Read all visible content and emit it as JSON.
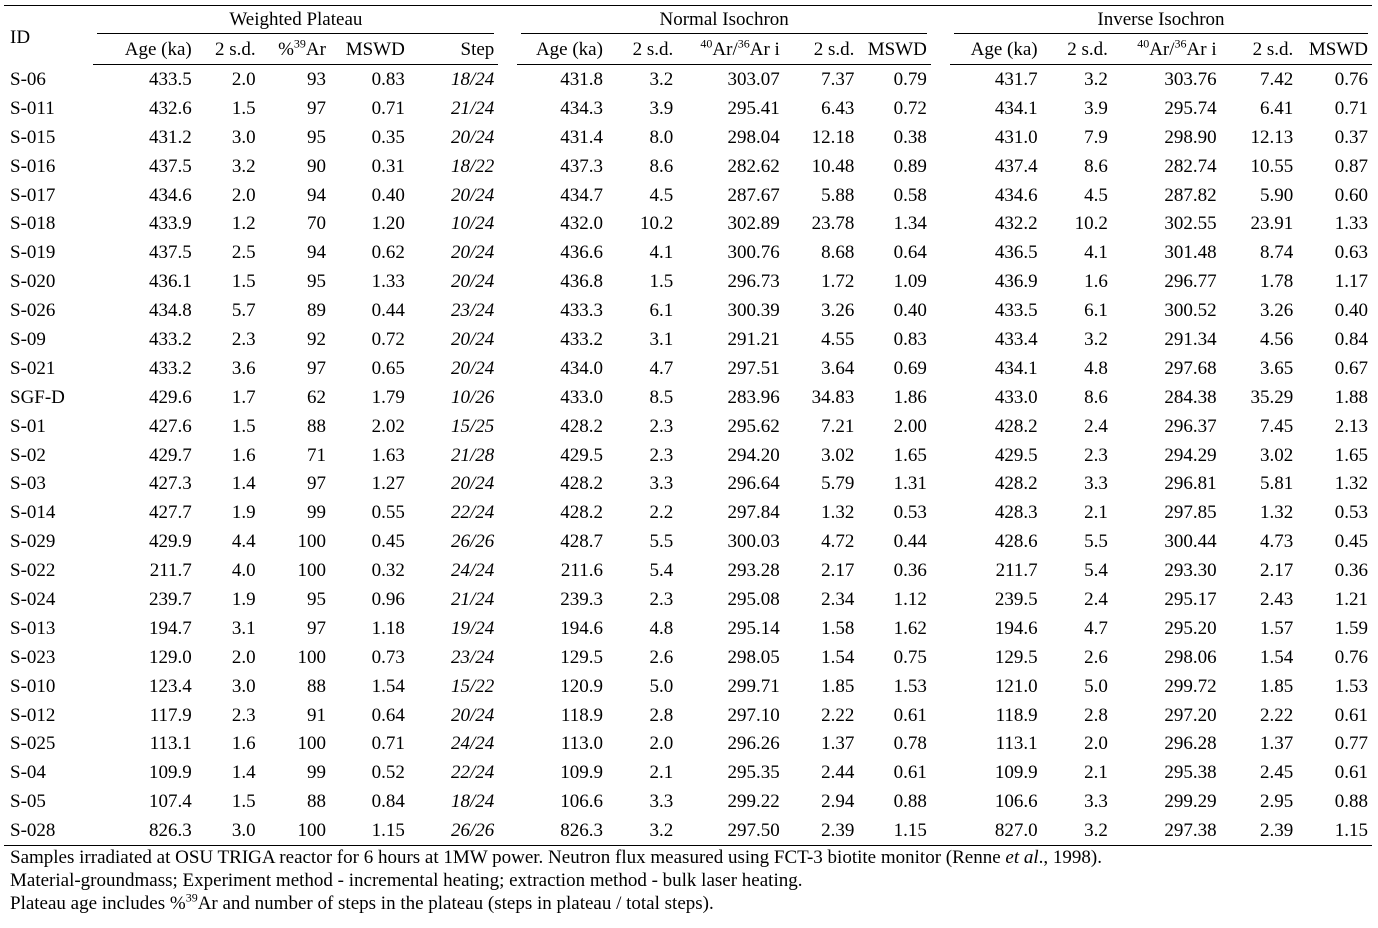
{
  "table": {
    "groups": {
      "id_label": "ID",
      "weighted_plateau": "Weighted Plateau",
      "normal_isochron": "Normal Isochron",
      "inverse_isochron": "Inverse Isochron"
    },
    "columns": {
      "age": "Age (ka)",
      "sd": "2 s.d.",
      "pct_sup": "39",
      "pct_base": "Ar",
      "pct_prefix": "%",
      "mswd": "MSWD",
      "step": "Step",
      "ratio_sup1": "40",
      "ratio_mid": "Ar/",
      "ratio_sup2": "36",
      "ratio_tail": "Ar i"
    },
    "rows": [
      [
        "S-06",
        "433.5",
        "2.0",
        "93",
        "0.83",
        "18/24",
        "431.8",
        "3.2",
        "303.07",
        "7.37",
        "0.79",
        "431.7",
        "3.2",
        "303.76",
        "7.42",
        "0.76"
      ],
      [
        "S-011",
        "432.6",
        "1.5",
        "97",
        "0.71",
        "21/24",
        "434.3",
        "3.9",
        "295.41",
        "6.43",
        "0.72",
        "434.1",
        "3.9",
        "295.74",
        "6.41",
        "0.71"
      ],
      [
        "S-015",
        "431.2",
        "3.0",
        "95",
        "0.35",
        "20/24",
        "431.4",
        "8.0",
        "298.04",
        "12.18",
        "0.38",
        "431.0",
        "7.9",
        "298.90",
        "12.13",
        "0.37"
      ],
      [
        "S-016",
        "437.5",
        "3.2",
        "90",
        "0.31",
        "18/22",
        "437.3",
        "8.6",
        "282.62",
        "10.48",
        "0.89",
        "437.4",
        "8.6",
        "282.74",
        "10.55",
        "0.87"
      ],
      [
        "S-017",
        "434.6",
        "2.0",
        "94",
        "0.40",
        "20/24",
        "434.7",
        "4.5",
        "287.67",
        "5.88",
        "0.58",
        "434.6",
        "4.5",
        "287.82",
        "5.90",
        "0.60"
      ],
      [
        "S-018",
        "433.9",
        "1.2",
        "70",
        "1.20",
        "10/24",
        "432.0",
        "10.2",
        "302.89",
        "23.78",
        "1.34",
        "432.2",
        "10.2",
        "302.55",
        "23.91",
        "1.33"
      ],
      [
        "S-019",
        "437.5",
        "2.5",
        "94",
        "0.62",
        "20/24",
        "436.6",
        "4.1",
        "300.76",
        "8.68",
        "0.64",
        "436.5",
        "4.1",
        "301.48",
        "8.74",
        "0.63"
      ],
      [
        "S-020",
        "436.1",
        "1.5",
        "95",
        "1.33",
        "20/24",
        "436.8",
        "1.5",
        "296.73",
        "1.72",
        "1.09",
        "436.9",
        "1.6",
        "296.77",
        "1.78",
        "1.17"
      ],
      [
        "S-026",
        "434.8",
        "5.7",
        "89",
        "0.44",
        "23/24",
        "433.3",
        "6.1",
        "300.39",
        "3.26",
        "0.40",
        "433.5",
        "6.1",
        "300.52",
        "3.26",
        "0.40"
      ],
      [
        "S-09",
        "433.2",
        "2.3",
        "92",
        "0.72",
        "20/24",
        "433.2",
        "3.1",
        "291.21",
        "4.55",
        "0.83",
        "433.4",
        "3.2",
        "291.34",
        "4.56",
        "0.84"
      ],
      [
        "S-021",
        "433.2",
        "3.6",
        "97",
        "0.65",
        "20/24",
        "434.0",
        "4.7",
        "297.51",
        "3.64",
        "0.69",
        "434.1",
        "4.8",
        "297.68",
        "3.65",
        "0.67"
      ],
      [
        "SGF-D",
        "429.6",
        "1.7",
        "62",
        "1.79",
        "10/26",
        "433.0",
        "8.5",
        "283.96",
        "34.83",
        "1.86",
        "433.0",
        "8.6",
        "284.38",
        "35.29",
        "1.88"
      ],
      [
        "S-01",
        "427.6",
        "1.5",
        "88",
        "2.02",
        "15/25",
        "428.2",
        "2.3",
        "295.62",
        "7.21",
        "2.00",
        "428.2",
        "2.4",
        "296.37",
        "7.45",
        "2.13"
      ],
      [
        "S-02",
        "429.7",
        "1.6",
        "71",
        "1.63",
        "21/28",
        "429.5",
        "2.3",
        "294.20",
        "3.02",
        "1.65",
        "429.5",
        "2.3",
        "294.29",
        "3.02",
        "1.65"
      ],
      [
        "S-03",
        "427.3",
        "1.4",
        "97",
        "1.27",
        "20/24",
        "428.2",
        "3.3",
        "296.64",
        "5.79",
        "1.31",
        "428.2",
        "3.3",
        "296.81",
        "5.81",
        "1.32"
      ],
      [
        "S-014",
        "427.7",
        "1.9",
        "99",
        "0.55",
        "22/24",
        "428.2",
        "2.2",
        "297.84",
        "1.32",
        "0.53",
        "428.3",
        "2.1",
        "297.85",
        "1.32",
        "0.53"
      ],
      [
        "S-029",
        "429.9",
        "4.4",
        "100",
        "0.45",
        "26/26",
        "428.7",
        "5.5",
        "300.03",
        "4.72",
        "0.44",
        "428.6",
        "5.5",
        "300.44",
        "4.73",
        "0.45"
      ],
      [
        "S-022",
        "211.7",
        "4.0",
        "100",
        "0.32",
        "24/24",
        "211.6",
        "5.4",
        "293.28",
        "2.17",
        "0.36",
        "211.7",
        "5.4",
        "293.30",
        "2.17",
        "0.36"
      ],
      [
        "S-024",
        "239.7",
        "1.9",
        "95",
        "0.96",
        "21/24",
        "239.3",
        "2.3",
        "295.08",
        "2.34",
        "1.12",
        "239.5",
        "2.4",
        "295.17",
        "2.43",
        "1.21"
      ],
      [
        "S-013",
        "194.7",
        "3.1",
        "97",
        "1.18",
        "19/24",
        "194.6",
        "4.8",
        "295.14",
        "1.58",
        "1.62",
        "194.6",
        "4.7",
        "295.20",
        "1.57",
        "1.59"
      ],
      [
        "S-023",
        "129.0",
        "2.0",
        "100",
        "0.73",
        "23/24",
        "129.5",
        "2.6",
        "298.05",
        "1.54",
        "0.75",
        "129.5",
        "2.6",
        "298.06",
        "1.54",
        "0.76"
      ],
      [
        "S-010",
        "123.4",
        "3.0",
        "88",
        "1.54",
        "15/22",
        "120.9",
        "5.0",
        "299.71",
        "1.85",
        "1.53",
        "121.0",
        "5.0",
        "299.72",
        "1.85",
        "1.53"
      ],
      [
        "S-012",
        "117.9",
        "2.3",
        "91",
        "0.64",
        "20/24",
        "118.9",
        "2.8",
        "297.10",
        "2.22",
        "0.61",
        "118.9",
        "2.8",
        "297.20",
        "2.22",
        "0.61"
      ],
      [
        "S-025",
        "113.1",
        "1.6",
        "100",
        "0.71",
        "24/24",
        "113.0",
        "2.0",
        "296.26",
        "1.37",
        "0.78",
        "113.1",
        "2.0",
        "296.28",
        "1.37",
        "0.77"
      ],
      [
        "S-04",
        "109.9",
        "1.4",
        "99",
        "0.52",
        "22/24",
        "109.9",
        "2.1",
        "295.35",
        "2.44",
        "0.61",
        "109.9",
        "2.1",
        "295.38",
        "2.45",
        "0.61"
      ],
      [
        "S-05",
        "107.4",
        "1.5",
        "88",
        "0.84",
        "18/24",
        "106.6",
        "3.3",
        "299.22",
        "2.94",
        "0.88",
        "106.6",
        "3.3",
        "299.29",
        "2.95",
        "0.88"
      ],
      [
        "S-028",
        "826.3",
        "3.0",
        "100",
        "1.15",
        "26/26",
        "826.3",
        "3.2",
        "297.50",
        "2.39",
        "1.15",
        "827.0",
        "3.2",
        "297.38",
        "2.39",
        "1.15"
      ]
    ]
  },
  "notes": {
    "line1_pre": "Samples irradiated at OSU TRIGA reactor for 6 hours at 1MW power. Neutron flux measured using FCT-3 biotite monitor (Renne ",
    "line1_em": "et al",
    "line1_post": "., 1998).",
    "line2": "Material-groundmass; Experiment method - incremental heating; extraction method - bulk laser heating.",
    "line3_pre": "Plateau age includes %",
    "line3_sup": "39",
    "line3_post": "Ar and number of steps in the plateau (steps in plateau / total steps)."
  }
}
